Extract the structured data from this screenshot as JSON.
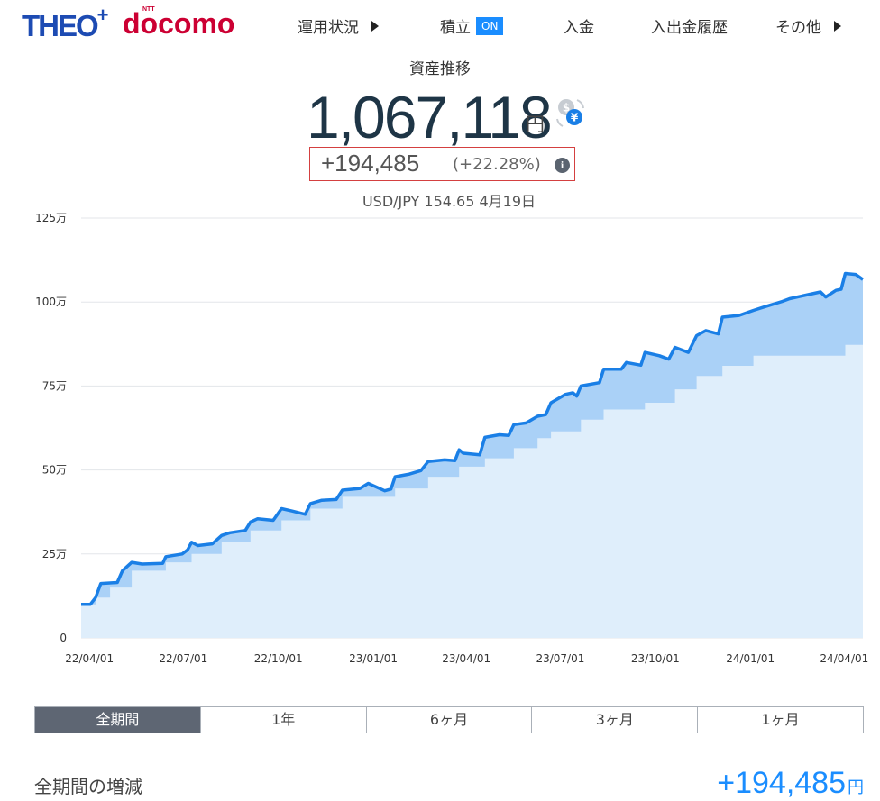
{
  "header": {
    "logo_theo": "THEO",
    "logo_theo_plus": "+",
    "logo_docomo": "docomo",
    "logo_ntt": "NTT",
    "nav": [
      {
        "label": "運用状況"
      },
      {
        "label": "積立",
        "badge": "ON"
      },
      {
        "label": "入金"
      },
      {
        "label": "入出金履歴"
      },
      {
        "label": "その他"
      }
    ]
  },
  "summary": {
    "title": "資産推移",
    "total_value": "1,067,118",
    "unit": "円",
    "gain_amount": "+194,485",
    "gain_pct": "(+22.28%)",
    "info_icon_text": "i",
    "fx_rate": "USD/JPY 154.65 4月19日"
  },
  "tabs": [
    {
      "label": "全期間",
      "active": true
    },
    {
      "label": "1年",
      "active": false
    },
    {
      "label": "6ヶ月",
      "active": false
    },
    {
      "label": "3ヶ月",
      "active": false
    },
    {
      "label": "1ヶ月",
      "active": false
    }
  ],
  "period_summary": {
    "label": "全期間の増減",
    "value": "+194,485",
    "unit": "円"
  },
  "colors": {
    "line": "#1a7fe6",
    "profit_fill": "#aad1f7",
    "principal_fill": "#dfeefb",
    "accent": "#1a8dff"
  },
  "chart_data": {
    "type": "area",
    "y_ticks": [
      "0",
      "25万",
      "50万",
      "75万",
      "100万",
      "125万"
    ],
    "y_tick_values": [
      0,
      250000,
      500000,
      750000,
      1000000,
      1250000
    ],
    "x_ticks": [
      "22/04/01",
      "22/07/01",
      "22/10/01",
      "23/01/01",
      "23/04/01",
      "23/07/01",
      "23/10/01",
      "24/01/01",
      "24/04/01"
    ],
    "ylim": [
      0,
      1250000
    ],
    "x_range": [
      "2022-03-24",
      "2024-04-19"
    ],
    "grid": true,
    "series": [
      {
        "role": "total",
        "points": [
          [
            "2022-03-24",
            100000
          ],
          [
            "2022-04-02",
            100000
          ],
          [
            "2022-04-07",
            120000
          ],
          [
            "2022-04-12",
            162000
          ],
          [
            "2022-04-28",
            165000
          ],
          [
            "2022-05-03",
            200000
          ],
          [
            "2022-05-12",
            225000
          ],
          [
            "2022-05-22",
            220000
          ],
          [
            "2022-06-11",
            222000
          ],
          [
            "2022-06-14",
            242000
          ],
          [
            "2022-06-30",
            250000
          ],
          [
            "2022-07-05",
            262000
          ],
          [
            "2022-07-09",
            285000
          ],
          [
            "2022-07-15",
            275000
          ],
          [
            "2022-07-29",
            280000
          ],
          [
            "2022-08-07",
            305000
          ],
          [
            "2022-08-15",
            313000
          ],
          [
            "2022-08-30",
            320000
          ],
          [
            "2022-09-04",
            345000
          ],
          [
            "2022-09-11",
            355000
          ],
          [
            "2022-09-26",
            350000
          ],
          [
            "2022-10-04",
            385000
          ],
          [
            "2022-10-14",
            378000
          ],
          [
            "2022-10-27",
            368000
          ],
          [
            "2022-11-01",
            400000
          ],
          [
            "2022-11-12",
            410000
          ],
          [
            "2022-11-26",
            412000
          ],
          [
            "2022-12-02",
            440000
          ],
          [
            "2022-12-19",
            445000
          ],
          [
            "2022-12-27",
            460000
          ],
          [
            "2023-01-12",
            438000
          ],
          [
            "2023-01-18",
            443000
          ],
          [
            "2023-01-22",
            480000
          ],
          [
            "2023-02-05",
            488000
          ],
          [
            "2023-02-16",
            498000
          ],
          [
            "2023-02-23",
            525000
          ],
          [
            "2023-03-11",
            530000
          ],
          [
            "2023-03-21",
            528000
          ],
          [
            "2023-03-25",
            560000
          ],
          [
            "2023-03-29",
            550000
          ],
          [
            "2023-04-14",
            545000
          ],
          [
            "2023-04-19",
            597000
          ],
          [
            "2023-05-03",
            605000
          ],
          [
            "2023-05-12",
            603000
          ],
          [
            "2023-05-17",
            635000
          ],
          [
            "2023-05-29",
            640000
          ],
          [
            "2023-06-09",
            660000
          ],
          [
            "2023-06-17",
            665000
          ],
          [
            "2023-06-22",
            700000
          ],
          [
            "2023-07-06",
            725000
          ],
          [
            "2023-07-13",
            730000
          ],
          [
            "2023-07-17",
            720000
          ],
          [
            "2023-07-21",
            750000
          ],
          [
            "2023-08-08",
            760000
          ],
          [
            "2023-08-12",
            800000
          ],
          [
            "2023-08-29",
            800000
          ],
          [
            "2023-09-03",
            820000
          ],
          [
            "2023-09-17",
            812000
          ],
          [
            "2023-09-21",
            850000
          ],
          [
            "2023-10-05",
            840000
          ],
          [
            "2023-10-14",
            830000
          ],
          [
            "2023-10-20",
            865000
          ],
          [
            "2023-11-02",
            850000
          ],
          [
            "2023-11-10",
            900000
          ],
          [
            "2023-11-19",
            915000
          ],
          [
            "2023-12-01",
            905000
          ],
          [
            "2023-12-05",
            955000
          ],
          [
            "2023-12-21",
            960000
          ],
          [
            "2024-01-04",
            975000
          ],
          [
            "2024-01-14",
            985000
          ],
          [
            "2024-02-01",
            1002000
          ],
          [
            "2024-02-08",
            1010000
          ],
          [
            "2024-02-26",
            1022000
          ],
          [
            "2024-03-09",
            1030000
          ],
          [
            "2024-03-14",
            1015000
          ],
          [
            "2024-03-24",
            1035000
          ],
          [
            "2024-03-29",
            1038000
          ],
          [
            "2024-04-02",
            1085000
          ],
          [
            "2024-04-12",
            1082000
          ],
          [
            "2024-04-19",
            1067118
          ]
        ]
      },
      {
        "role": "principal",
        "points": [
          [
            "2022-03-24",
            100000
          ],
          [
            "2022-04-07",
            120000
          ],
          [
            "2022-04-21",
            150000
          ],
          [
            "2022-05-12",
            200000
          ],
          [
            "2022-06-14",
            225000
          ],
          [
            "2022-07-09",
            250000
          ],
          [
            "2022-08-07",
            285000
          ],
          [
            "2022-09-04",
            320000
          ],
          [
            "2022-10-04",
            350000
          ],
          [
            "2022-11-01",
            385000
          ],
          [
            "2022-12-02",
            420000
          ],
          [
            "2023-01-22",
            445000
          ],
          [
            "2023-02-23",
            480000
          ],
          [
            "2023-03-25",
            510000
          ],
          [
            "2023-04-19",
            535000
          ],
          [
            "2023-05-17",
            565000
          ],
          [
            "2023-06-09",
            595000
          ],
          [
            "2023-06-22",
            615000
          ],
          [
            "2023-07-21",
            650000
          ],
          [
            "2023-08-12",
            680000
          ],
          [
            "2023-09-21",
            700000
          ],
          [
            "2023-10-20",
            740000
          ],
          [
            "2023-11-10",
            780000
          ],
          [
            "2023-12-05",
            810000
          ],
          [
            "2024-01-04",
            840000
          ],
          [
            "2024-04-02",
            872633
          ],
          [
            "2024-04-19",
            872633
          ]
        ]
      }
    ]
  }
}
